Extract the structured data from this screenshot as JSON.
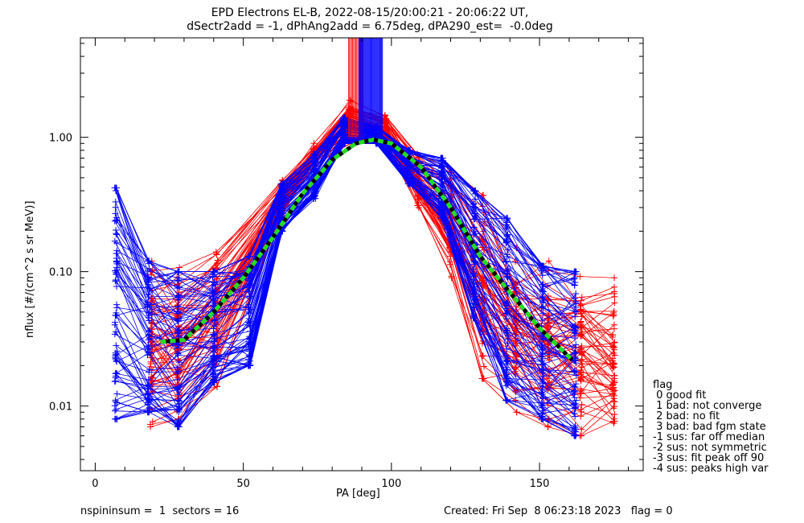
{
  "title": {
    "line1": "EPD Electrons EL-B, 2022-08-15/20:00:21 - 20:06:22 UT,",
    "line2": "dSectr2add = -1, dPhAng2add = 6.75deg, dPA290_est=  -0.0deg"
  },
  "footer": {
    "left": "nspininsum =  1  sectors = 16",
    "right": "Created: Fri Sep  8 06:23:18 2023   flag = 0"
  },
  "legend": {
    "heading": "flag",
    "items": [
      " 0 good fit",
      " 1 bad: not converge",
      " 2 bad: no fit",
      " 3 bad: bad fgm state",
      "-1 sus: far off median",
      "-2 sus: not symmetric",
      "-3 sus: fit peak off 90",
      "-4 sus: peaks high var"
    ]
  },
  "chart_data": {
    "type": "line",
    "xlabel": "PA [deg]",
    "ylabel": "nflux [#/(cm^2 s sr MeV)]",
    "xlim": [
      -5,
      185
    ],
    "ylim": [
      0.0033,
      5.5
    ],
    "y_scale": "log",
    "x_ticks": [
      0,
      50,
      100,
      150
    ],
    "x_tick_labels": [
      "0",
      "50",
      "100",
      "150"
    ],
    "y_ticks": [
      0.01,
      0.1,
      1.0
    ],
    "y_tick_labels": [
      "0.01",
      "0.10",
      "1.00"
    ],
    "colors": {
      "red": "#ff0000",
      "blue": "#0000ff",
      "fit": "#22dd22",
      "fit_dark": "#000000"
    },
    "series": [
      {
        "color": "red",
        "x": [
          19,
          28,
          41,
          63,
          74,
          86,
          98,
          109,
          120,
          131,
          142,
          153,
          164,
          175
        ],
        "band_low": [
          0.007,
          0.008,
          0.014,
          0.25,
          0.6,
          0.9,
          0.9,
          0.3,
          0.09,
          0.016,
          0.009,
          0.007,
          0.006,
          0.0055
        ],
        "band_high": [
          0.12,
          0.11,
          0.16,
          0.48,
          0.9,
          1.9,
          1.5,
          0.75,
          0.6,
          0.37,
          0.15,
          0.12,
          0.1,
          0.09
        ]
      },
      {
        "color": "blue",
        "x": [
          7,
          18,
          28,
          40,
          52,
          63,
          74,
          84,
          95,
          106,
          117,
          128,
          139,
          151,
          162
        ],
        "band_low": [
          0.008,
          0.009,
          0.007,
          0.015,
          0.02,
          0.2,
          0.35,
          0.9,
          0.9,
          0.45,
          0.25,
          0.045,
          0.011,
          0.008,
          0.006
        ],
        "band_high": [
          0.42,
          0.12,
          0.1,
          0.1,
          0.13,
          0.45,
          0.75,
          1.4,
          1.2,
          0.8,
          0.7,
          0.4,
          0.25,
          0.11,
          0.1
        ]
      },
      {
        "name": "fit",
        "color": "fit",
        "x": [
          22,
          30,
          40,
          50,
          60,
          70,
          80,
          88,
          94,
          100,
          110,
          120,
          130,
          140,
          150,
          161
        ],
        "y": [
          0.03,
          0.031,
          0.05,
          0.09,
          0.18,
          0.38,
          0.68,
          0.9,
          0.96,
          0.9,
          0.6,
          0.3,
          0.13,
          0.07,
          0.038,
          0.022
        ]
      }
    ]
  }
}
